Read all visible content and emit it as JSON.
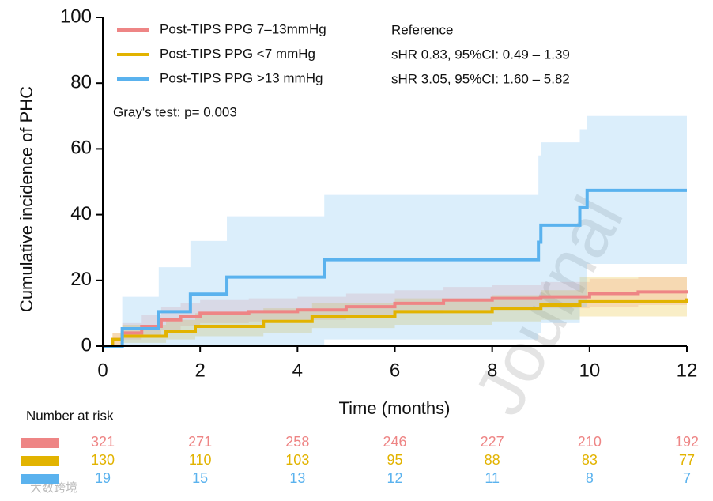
{
  "chart_data": {
    "type": "step",
    "y_label": "Cumulative incidence of PHC",
    "x_label": "Time (months)",
    "xlim": [
      0,
      12
    ],
    "xticks": [
      0,
      2,
      4,
      6,
      8,
      10,
      12
    ],
    "ylim": [
      0,
      100
    ],
    "yticks": [
      0,
      20,
      40,
      60,
      80,
      100
    ],
    "legend": "upper left",
    "annotation": "Gray's test: p= 0.003",
    "risk_table_title": "Number at risk",
    "watermarks": [
      "Journal",
      "大数跨境"
    ],
    "series": [
      {
        "name": "Post-TIPS PPG 7–13mmHg",
        "color": "#ee8585",
        "note": "Reference",
        "x": [
          0,
          0.2,
          0.4,
          0.8,
          1.2,
          1.6,
          2,
          3,
          4,
          5,
          6,
          7,
          8,
          9,
          10,
          11,
          12
        ],
        "values": [
          0,
          2,
          4,
          6,
          8,
          9,
          10,
          10.5,
          11,
          12,
          13,
          14,
          14.5,
          15,
          16,
          16.5,
          17
        ],
        "upper": [
          0,
          4,
          7,
          9.5,
          12,
          13,
          14,
          14.5,
          15,
          16,
          17,
          18,
          18.5,
          19.5,
          20.5,
          21,
          22
        ],
        "lower": [
          0,
          0.5,
          2,
          3.5,
          5,
          6,
          7,
          7.5,
          8,
          9,
          10,
          11,
          11,
          11.5,
          12,
          12.5,
          13
        ],
        "at_risk": [
          321,
          271,
          258,
          246,
          227,
          210,
          192
        ]
      },
      {
        "name": "Post-TIPS PPG <7 mmHg",
        "color": "#e2b300",
        "note": "sHR 0.83, 95%CI: 0.49 – 1.39",
        "x": [
          0,
          0.2,
          0.4,
          1.3,
          1.9,
          3.3,
          4.3,
          6,
          8,
          9,
          9.8,
          12
        ],
        "values": [
          0,
          2,
          3,
          4.5,
          6,
          7.5,
          9,
          10.5,
          11.5,
          12.5,
          13.5,
          14.5
        ],
        "upper": [
          0,
          4,
          6.5,
          8,
          10,
          11.5,
          13,
          14.5,
          15.5,
          17,
          21,
          21
        ],
        "lower": [
          0,
          0.5,
          1,
          2,
          3,
          4,
          5.5,
          6.5,
          7.5,
          8,
          9,
          9
        ],
        "at_risk": [
          130,
          110,
          103,
          95,
          88,
          83,
          77
        ]
      },
      {
        "name": "Post-TIPS PPG >13 mmHg",
        "color": "#5ab2ee",
        "note": "sHR 3.05, 95%CI: 1.60 – 5.82",
        "x": [
          0,
          0.4,
          1.15,
          1.8,
          2.55,
          4.55,
          8.95,
          9.0,
          9.8,
          9.95,
          12
        ],
        "values": [
          0,
          5.3,
          10.5,
          15.8,
          21,
          26.3,
          31.6,
          36.8,
          42.1,
          47.4,
          47.4
        ],
        "upper": [
          0,
          15,
          24,
          32,
          39.5,
          46,
          58,
          62,
          66,
          70,
          70
        ],
        "lower": [
          0,
          0,
          0,
          0,
          0,
          2,
          4,
          7,
          12,
          25,
          25
        ],
        "at_risk": [
          19,
          15,
          13,
          12,
          11,
          8,
          7
        ]
      }
    ]
  }
}
